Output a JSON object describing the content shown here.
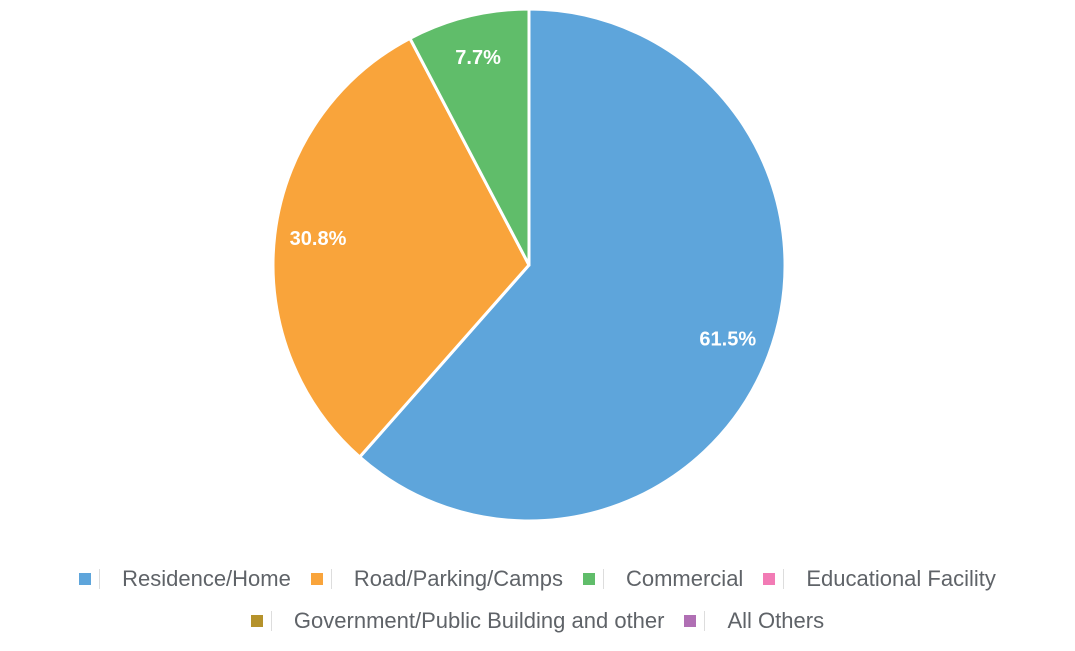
{
  "chart_data": {
    "type": "pie",
    "categories": [
      "Residence/Home",
      "Road/Parking/Camps",
      "Commercial",
      "Educational Facility",
      "Government/Public Building and other",
      "All Others"
    ],
    "values": [
      61.5,
      30.8,
      7.7,
      0,
      0,
      0
    ],
    "value_labels": [
      "61.5%",
      "30.8%",
      "7.7%",
      null,
      null,
      null
    ],
    "colors": [
      "#5ea5db",
      "#f9a43b",
      "#60bd6a",
      "#f27bb5",
      "#b5922b",
      "#b06fb4"
    ],
    "legend": "bottom"
  }
}
